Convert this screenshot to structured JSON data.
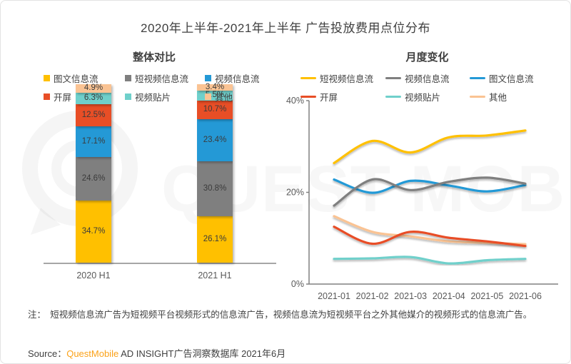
{
  "page": {
    "title": "2020年上半年-2021年上半年 广告投放费用点位分布"
  },
  "watermark": {
    "text": "QUEST MOBILE",
    "logo": "questmobile-q-logo"
  },
  "colors": {
    "yellow": "#FFC000",
    "gray": "#7F7F7F",
    "blue": "#2499D6",
    "red": "#E84E26",
    "teal": "#6FD0CB",
    "peach": "#FAC393",
    "axis": "#808080",
    "bar_axis": "#A6A6A6",
    "text": "#404040",
    "brand_orange": "#FBA219"
  },
  "chart_data": [
    {
      "type": "bar",
      "stacked": true,
      "title": "整体对比",
      "categories": [
        "2020 H1",
        "2021 H1"
      ],
      "unit": "%",
      "ylim": [
        0,
        100
      ],
      "grid": false,
      "legend_position": "top",
      "series": [
        {
          "name": "图文信息流",
          "color": "#FFC000",
          "values": [
            34.7,
            26.1
          ]
        },
        {
          "name": "短视频信息流",
          "color": "#7F7F7F",
          "values": [
            24.6,
            30.8
          ]
        },
        {
          "name": "视频信息流",
          "color": "#2499D6",
          "values": [
            17.1,
            23.4
          ]
        },
        {
          "name": "开屏",
          "color": "#E84E26",
          "values": [
            12.5,
            10.7
          ]
        },
        {
          "name": "视频贴片",
          "color": "#6FD0CB",
          "values": [
            6.3,
            5.5
          ]
        },
        {
          "name": "其他",
          "color": "#FAC393",
          "values": [
            4.9,
            3.4
          ]
        }
      ]
    },
    {
      "type": "line",
      "title": "月度变化",
      "x": [
        "2021-01",
        "2021-02",
        "2021-03",
        "2021-04",
        "2021-05",
        "2021-06"
      ],
      "yticks": [
        0,
        20,
        40
      ],
      "ytick_labels": [
        "0%",
        "20%",
        "40%"
      ],
      "ylim": [
        0,
        40
      ],
      "unit": "%",
      "grid": false,
      "legend_position": "top",
      "series": [
        {
          "name": "短视频信息流",
          "color": "#FFC000",
          "values": [
            26.4,
            31.2,
            28.7,
            32.0,
            32.4,
            33.5
          ]
        },
        {
          "name": "视频信息流",
          "color": "#7F7F7F",
          "values": [
            17.1,
            22.8,
            20.5,
            22.3,
            23.2,
            21.9
          ]
        },
        {
          "name": "图文信息流",
          "color": "#2499D6",
          "values": [
            22.8,
            19.9,
            22.5,
            21.5,
            20.2,
            21.6
          ]
        },
        {
          "name": "开屏",
          "color": "#E84E26",
          "values": [
            12.5,
            8.8,
            11.4,
            10.1,
            9.3,
            8.3
          ]
        },
        {
          "name": "视频贴片",
          "color": "#6FD0CB",
          "values": [
            5.5,
            5.6,
            5.9,
            4.5,
            5.2,
            5.5
          ]
        },
        {
          "name": "其他",
          "color": "#FAC393",
          "values": [
            14.8,
            11.4,
            10.4,
            9.3,
            9.0,
            8.7
          ]
        }
      ]
    }
  ],
  "footnote": {
    "prefix": "注：",
    "text": "短视频信息流广告为短视频平台视频形式的信息流广告，视频信息流为短视频平台之外其他媒介的视频形式的信息流广告。"
  },
  "source": {
    "label": "Source：",
    "brand": "QuestMobile",
    "rest": " AD INSIGHT广告洞察数据库 2021年6月"
  }
}
